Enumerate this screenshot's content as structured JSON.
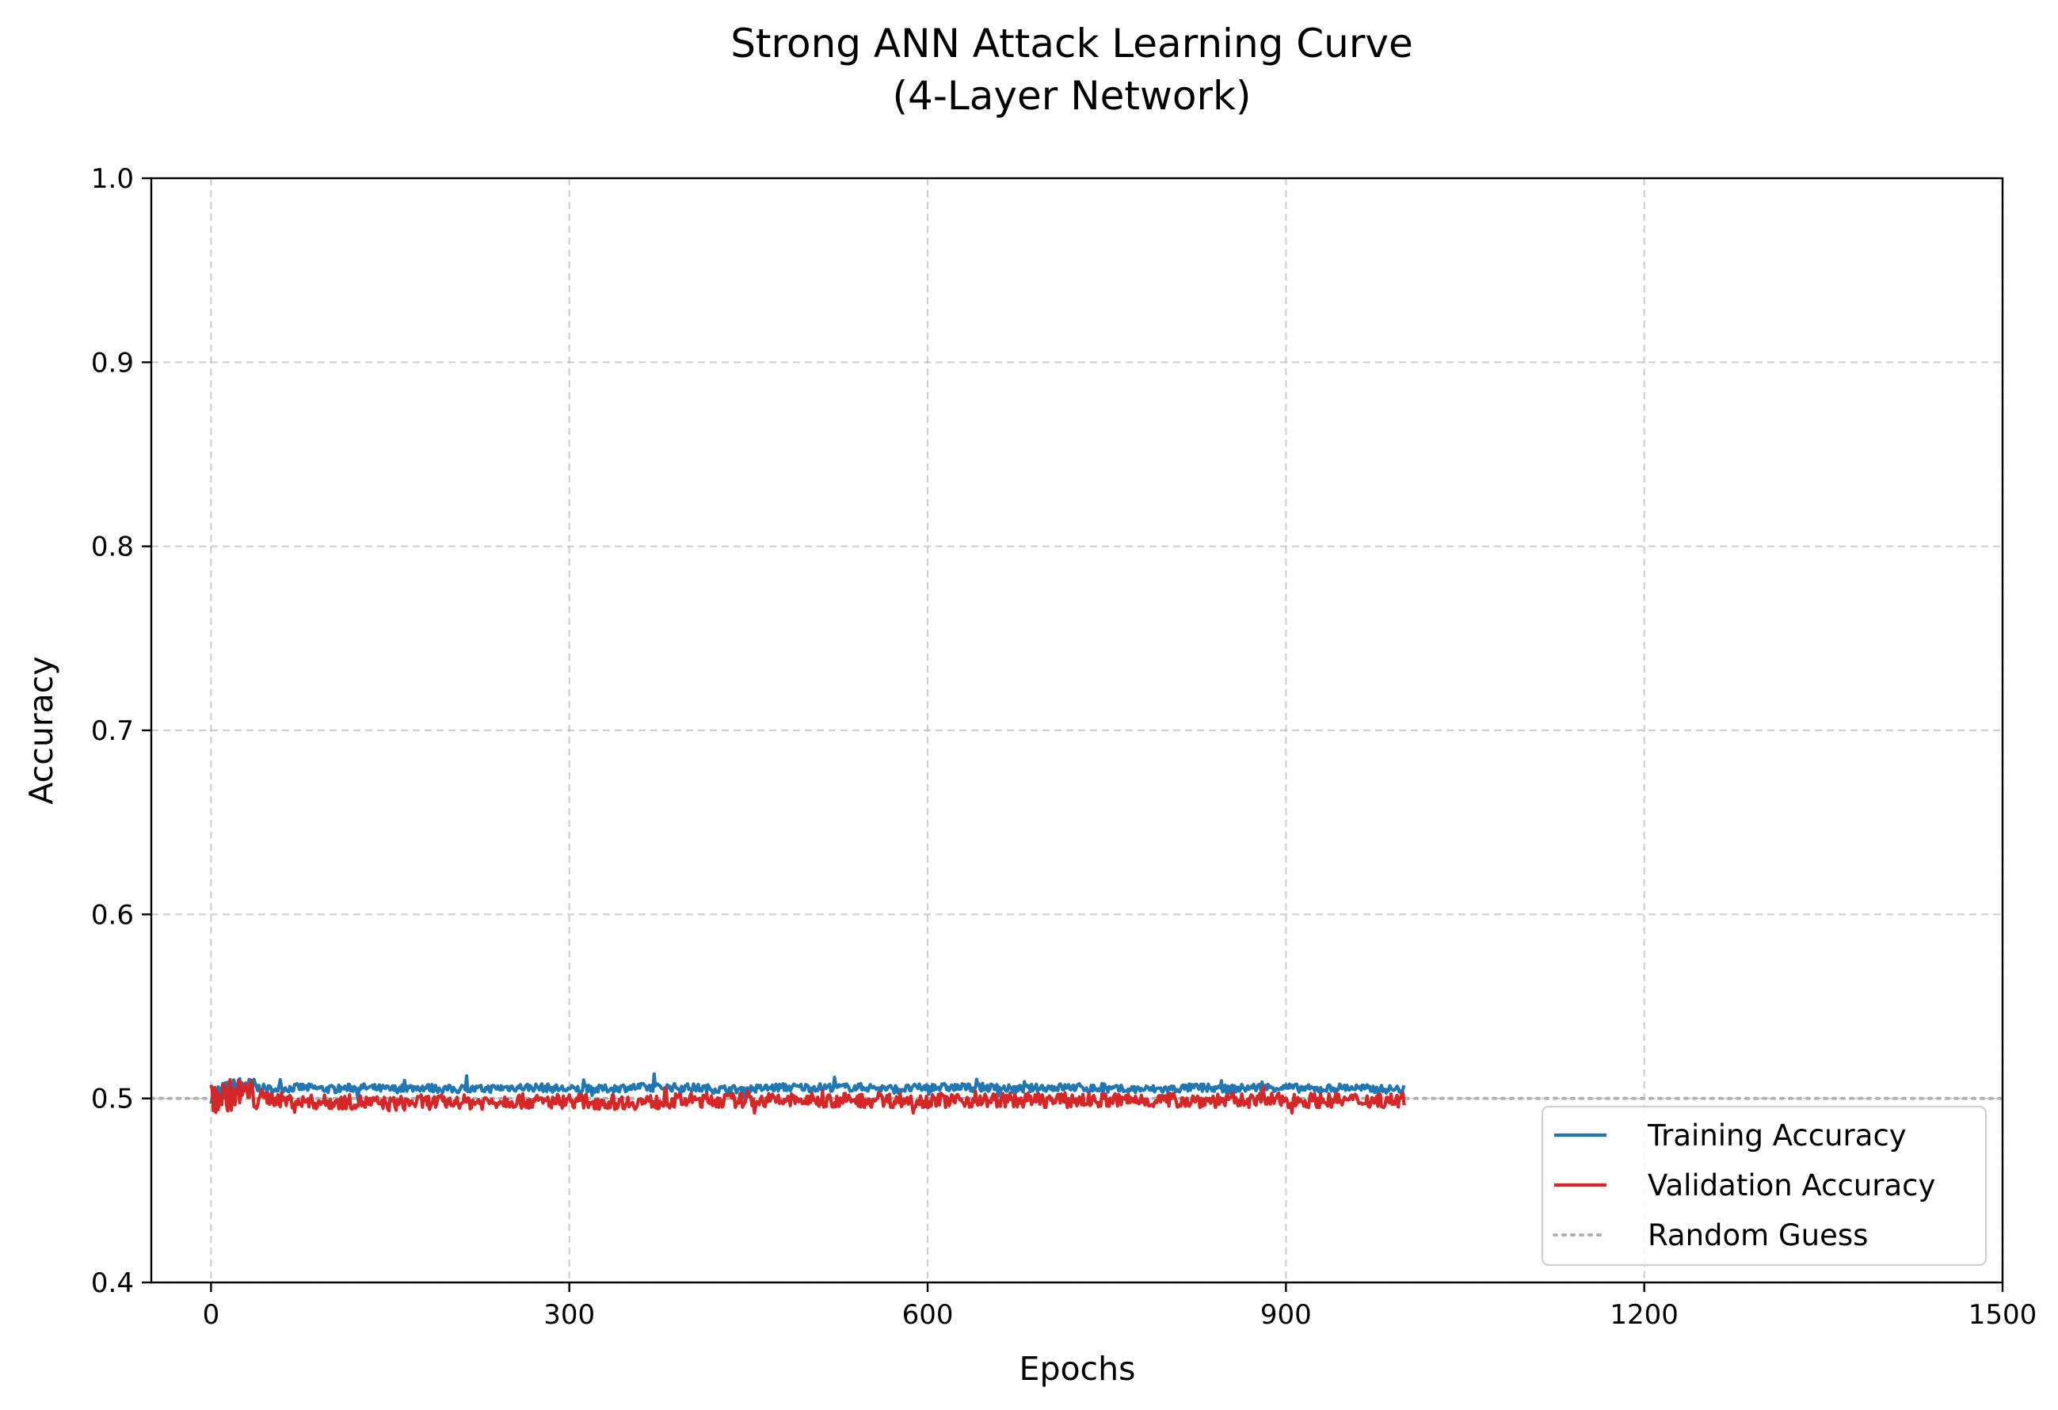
{
  "chart_data": {
    "type": "line",
    "title": "Strong ANN Attack Learning Curve",
    "subtitle": "(4-Layer Network)",
    "xlabel": "Epochs",
    "ylabel": "Accuracy",
    "xlim": [
      -50,
      1500
    ],
    "ylim": [
      0.4,
      1.0
    ],
    "xticks": [
      0,
      300,
      600,
      900,
      1200,
      1500
    ],
    "yticks": [
      0.4,
      0.5,
      0.6,
      0.7,
      0.8,
      0.9,
      1.0
    ],
    "xtick_labels": [
      "0",
      "300",
      "600",
      "900",
      "1200",
      "1500"
    ],
    "ytick_labels": [
      "0.4",
      "0.5",
      "0.6",
      "0.7",
      "0.8",
      "0.9",
      "1.0"
    ],
    "grid": true,
    "legend_position": "lower-right",
    "epochs": 1000,
    "series": [
      {
        "name": "Training Accuracy",
        "color": "#1f77b4",
        "style": "solid",
        "x": [
          0,
          25,
          50,
          75,
          100,
          125,
          150,
          175,
          200,
          225,
          250,
          275,
          300,
          325,
          350,
          375,
          400,
          425,
          450,
          475,
          500,
          525,
          550,
          575,
          600,
          625,
          650,
          675,
          700,
          725,
          750,
          775,
          800,
          825,
          850,
          875,
          900,
          925,
          950,
          975,
          999
        ],
        "values": [
          0.502,
          0.507,
          0.505,
          0.506,
          0.505,
          0.506,
          0.505,
          0.506,
          0.505,
          0.505,
          0.506,
          0.506,
          0.505,
          0.505,
          0.506,
          0.506,
          0.506,
          0.505,
          0.505,
          0.506,
          0.506,
          0.506,
          0.506,
          0.505,
          0.506,
          0.506,
          0.506,
          0.505,
          0.506,
          0.506,
          0.505,
          0.505,
          0.505,
          0.506,
          0.505,
          0.506,
          0.506,
          0.505,
          0.506,
          0.505,
          0.505
        ]
      },
      {
        "name": "Validation Accuracy",
        "color": "#d62728",
        "style": "solid",
        "x": [
          0,
          25,
          50,
          75,
          100,
          125,
          150,
          175,
          200,
          225,
          250,
          275,
          300,
          325,
          350,
          375,
          400,
          425,
          450,
          475,
          500,
          525,
          550,
          575,
          600,
          625,
          650,
          675,
          700,
          725,
          750,
          775,
          800,
          825,
          850,
          875,
          900,
          925,
          950,
          975,
          999
        ],
        "values": [
          0.5,
          0.503,
          0.5,
          0.498,
          0.498,
          0.498,
          0.497,
          0.498,
          0.498,
          0.498,
          0.499,
          0.498,
          0.499,
          0.498,
          0.498,
          0.498,
          0.499,
          0.499,
          0.499,
          0.499,
          0.499,
          0.499,
          0.499,
          0.499,
          0.499,
          0.499,
          0.499,
          0.499,
          0.499,
          0.499,
          0.499,
          0.499,
          0.499,
          0.499,
          0.499,
          0.499,
          0.499,
          0.499,
          0.499,
          0.499,
          0.499
        ]
      },
      {
        "name": "Random Guess",
        "color": "#b0b0b0",
        "style": "dotted",
        "x": [
          -50,
          1500
        ],
        "values": [
          0.5,
          0.5
        ]
      }
    ]
  }
}
